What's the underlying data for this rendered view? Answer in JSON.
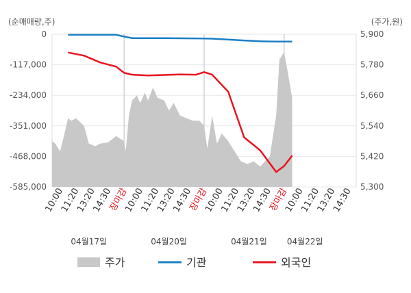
{
  "chart_data": {
    "type": "line",
    "left_axis_label": "(순매매량,주)",
    "right_axis_label": "(주가,원)",
    "left_ticks": [
      "0",
      "-117,000",
      "-234,000",
      "-351,000",
      "-468,000",
      "-585,000"
    ],
    "right_ticks": [
      "5,900",
      "5,780",
      "5,660",
      "5,540",
      "5,420",
      "5,300"
    ],
    "ylim_left": [
      -585000,
      0
    ],
    "ylim_right": [
      5300,
      5900
    ],
    "x_tick_labels": [
      "10:00",
      "11:20",
      "13:20",
      "14:30",
      "장마감",
      "10:00",
      "11:20",
      "13:20",
      "14:30",
      "장마감",
      "10:00",
      "11:20",
      "13:20",
      "14:30",
      "장마감",
      "10:00",
      "11:20",
      "13:20",
      "14:30"
    ],
    "closing_label": "장마감",
    "dates": [
      "04월17일",
      "04월20일",
      "04월21일",
      "04월22일"
    ],
    "x_range": [
      0,
      19
    ],
    "day_boundaries": [
      4.5,
      9.5,
      14.5
    ],
    "grid": true,
    "legend": [
      {
        "name": "주가",
        "color": "#c8c8c8"
      },
      {
        "name": "기관",
        "color": "#1a7fc4"
      },
      {
        "name": "외국인",
        "color": "#e8141e"
      }
    ],
    "series": [
      {
        "name": "기관",
        "axis": "left",
        "color": "#1a7fc4",
        "x": [
          1,
          2,
          3,
          4,
          4.5,
          5,
          7,
          9,
          9.5,
          10,
          12,
          13,
          14,
          14.5,
          15
        ],
        "values": [
          -2000,
          -2000,
          -2000,
          -2000,
          -9000,
          -15000,
          -15000,
          -16000,
          -16500,
          -17000,
          -24000,
          -27000,
          -28000,
          -28000,
          -28000
        ]
      },
      {
        "name": "외국인",
        "axis": "left",
        "color": "#e8141e",
        "x": [
          1,
          2,
          3,
          4,
          4.5,
          5,
          6,
          7,
          8,
          9,
          9.5,
          10,
          11,
          12,
          13,
          14,
          14.5,
          15
        ],
        "values": [
          -70000,
          -82000,
          -108000,
          -124000,
          -148000,
          -155000,
          -158000,
          -156000,
          -154000,
          -155000,
          -145000,
          -155000,
          -220000,
          -395000,
          -445000,
          -528000,
          -505000,
          -465000
        ]
      },
      {
        "name": "주가",
        "axis": "right",
        "type": "area",
        "color": "#c8c8c8",
        "x": [
          0,
          0.2,
          0.5,
          0.7,
          1,
          1.2,
          1.5,
          2,
          2.3,
          2.7,
          3,
          3.5,
          4,
          4.5,
          4.6,
          4.8,
          5,
          5.3,
          5.5,
          5.8,
          6,
          6.3,
          6.6,
          7,
          7.3,
          7.6,
          8,
          8.4,
          8.8,
          9.2,
          9.5,
          9.7,
          10,
          10.3,
          10.6,
          11,
          11.4,
          11.8,
          12.2,
          12.6,
          13,
          13.3,
          13.6,
          14,
          14.2,
          14.5,
          14.7,
          15
        ],
        "values": [
          5480,
          5470,
          5440,
          5490,
          5570,
          5560,
          5570,
          5540,
          5470,
          5460,
          5470,
          5475,
          5500,
          5480,
          5440,
          5580,
          5640,
          5660,
          5630,
          5670,
          5640,
          5690,
          5650,
          5640,
          5600,
          5630,
          5580,
          5570,
          5560,
          5560,
          5540,
          5450,
          5580,
          5470,
          5510,
          5480,
          5440,
          5400,
          5390,
          5400,
          5380,
          5400,
          5420,
          5580,
          5800,
          5830,
          5760,
          5650
        ]
      }
    ]
  }
}
